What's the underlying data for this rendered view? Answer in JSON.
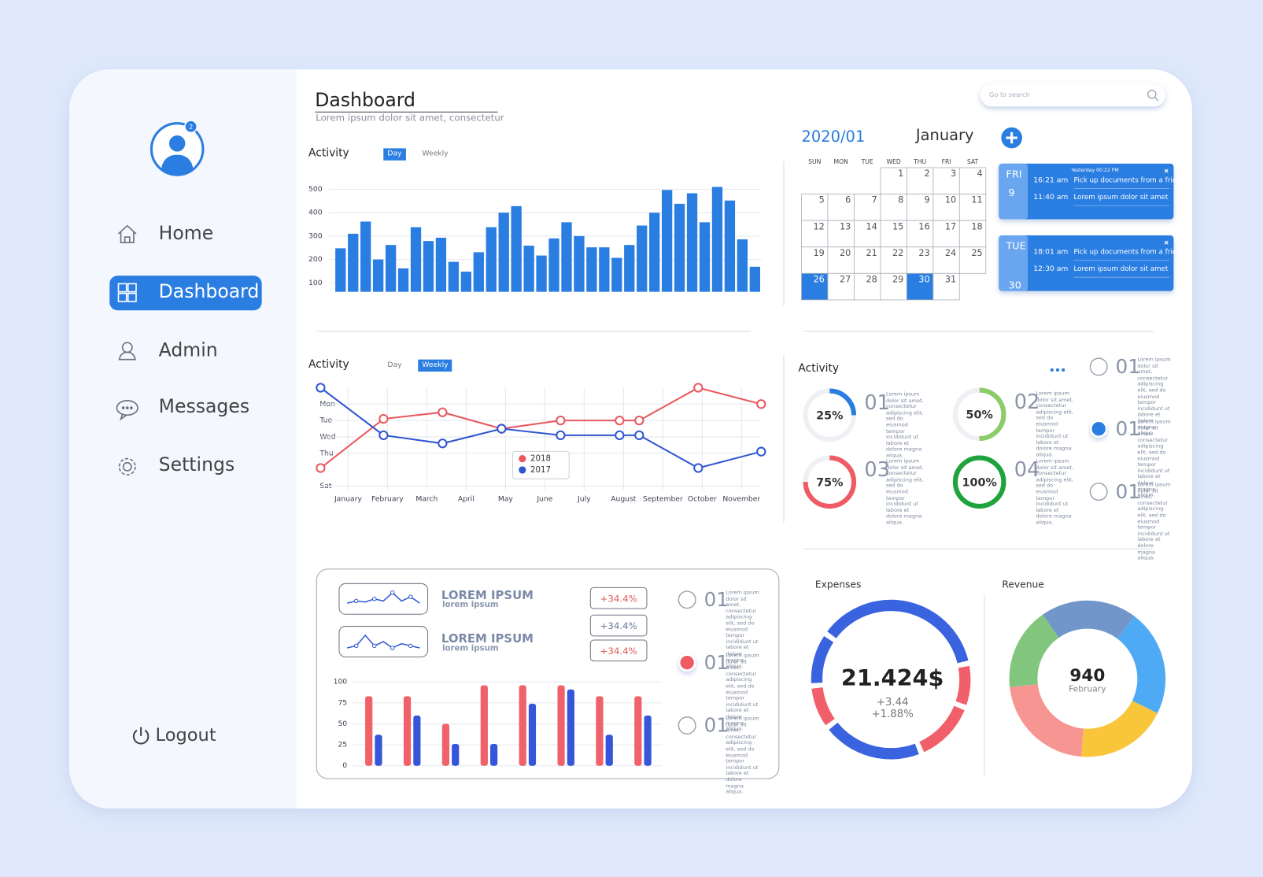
{
  "sidebar": {
    "badge": "2",
    "nav": [
      "Home",
      "Dashboard",
      "Admin",
      "Messages",
      "Settings"
    ],
    "active": 1,
    "logout": "Logout"
  },
  "header": {
    "title": "Dashboard",
    "subtitle": "Lorem ipsum dolor sit amet, consectetur",
    "search": "Go to search"
  },
  "lorem": "Lorem ipsum dolor sit amet, consectetur adipiscing elit, sed do eiusmod tempor incididunt ut labore et dolore magna aliqua.",
  "calendar": {
    "year_month": "2020/01",
    "month": "January",
    "weekdays": [
      "SUN",
      "MON",
      "TUE",
      "WED",
      "THU",
      "FRI",
      "SAT"
    ],
    "weeks": [
      [
        null,
        null,
        null,
        1,
        2,
        3,
        4
      ],
      [
        5,
        6,
        7,
        8,
        9,
        10,
        11
      ],
      [
        12,
        13,
        14,
        15,
        16,
        17,
        18
      ],
      [
        19,
        20,
        21,
        22,
        23,
        24,
        25
      ],
      [
        26,
        27,
        28,
        29,
        30,
        31,
        null
      ]
    ],
    "selected": [
      26,
      30
    ]
  },
  "events": [
    {
      "day": "FRI",
      "date": "9",
      "note": "Yesterday 00:22  PM",
      "items": [
        {
          "time": "16:21 am",
          "text": "Pick up documents from a friend"
        },
        {
          "time": "11:40 am",
          "text": "Lorem ipsum dolor sit amet"
        }
      ]
    },
    {
      "day": "TUE",
      "date": "30",
      "items": [
        {
          "time": "18:01 am",
          "text": "Pick up documents from a friend"
        },
        {
          "time": "12:30 am",
          "text": "Lorem ipsum dolor sit amet"
        }
      ]
    }
  ],
  "progress": {
    "title": "Activity",
    "items": [
      {
        "number": "01",
        "value": 25,
        "label": "25%",
        "color": "#2a7de1"
      },
      {
        "number": "02",
        "value": 50,
        "label": "50%",
        "color": "#8dcc6a"
      },
      {
        "number": "03",
        "value": 75,
        "label": "75%",
        "color": "#ef5b64"
      },
      {
        "number": "04",
        "value": 100,
        "label": "100%",
        "color": "#1fa33c"
      }
    ]
  },
  "radio_lists": [
    {
      "items": [
        "01",
        "01",
        "01"
      ],
      "selected": 1,
      "color": "#2a7de1"
    },
    {
      "items": [
        "01",
        "01",
        "01"
      ],
      "selected": 1,
      "color": "#ef5b64"
    }
  ],
  "summary": {
    "rows": [
      {
        "title": "LOREM IPSUM",
        "subtitle": "lorem ipsum",
        "values": [
          3,
          4,
          3.5,
          5,
          4,
          8,
          4,
          6,
          3
        ],
        "ylim": [
          0,
          10
        ]
      },
      {
        "title": "LOREM IPSUM",
        "subtitle": "lorem ipsum",
        "values": [
          2,
          3,
          8,
          3,
          5,
          2,
          4,
          3,
          2
        ],
        "ylim": [
          0,
          10
        ]
      }
    ],
    "badges": [
      {
        "value": 34.4,
        "label": "+34.4%",
        "color": "#e05a5a"
      },
      {
        "value": 34.4,
        "label": "+34.4%",
        "color": "#6b7a99"
      },
      {
        "value": 34.4,
        "label": "+34.4%",
        "color": "#e05a5a"
      }
    ]
  },
  "chart_data": [
    {
      "type": "bar",
      "title": "Activity",
      "toggle": [
        "Day",
        "Weekly"
      ],
      "toggle_active": 0,
      "categories": [
        null,
        null,
        null,
        null,
        null,
        null,
        null,
        null,
        null,
        null,
        null,
        null,
        null,
        null,
        null,
        null,
        null,
        null,
        null,
        null,
        null,
        null,
        null,
        null,
        null,
        null,
        null,
        null,
        null,
        null,
        null,
        null,
        null,
        null
      ],
      "values": [
        248,
        310,
        362,
        200,
        262,
        162,
        338,
        279,
        293,
        190,
        148,
        231,
        338,
        400,
        428,
        259,
        217,
        290,
        359,
        300,
        252,
        252,
        207,
        262,
        345,
        400,
        497,
        438,
        483,
        359,
        510,
        452,
        286,
        169
      ],
      "color": "#2a7de1",
      "ylim": [
        62,
        520
      ],
      "yticks": [
        100,
        200,
        300,
        400,
        500
      ],
      "grid": true
    },
    {
      "type": "line",
      "title": "Activity",
      "toggle": [
        "Day",
        "Weekly"
      ],
      "toggle_active": 1,
      "x": [
        -0.7,
        0.9,
        2.4,
        3.9,
        5.4,
        6.9,
        7.4,
        8.9,
        10.5
      ],
      "series": [
        {
          "name": "2018",
          "color": "#e8585e",
          "values": [
            4.9,
            1.9,
            1.5,
            2.5,
            2,
            2,
            2,
            0,
            1
          ]
        },
        {
          "name": "2017",
          "color": "#2f56d2",
          "values": [
            0,
            2.9,
            3.4,
            2.5,
            2.9,
            2.9,
            2.9,
            4.9,
            3.9
          ]
        }
      ],
      "xlim": [
        -0.7,
        10.5
      ],
      "xticks": [
        {
          "value": 0,
          "label": "January"
        },
        {
          "value": 1,
          "label": "February"
        },
        {
          "value": 2,
          "label": "March"
        },
        {
          "value": 3,
          "label": "April"
        },
        {
          "value": 4,
          "label": "May"
        },
        {
          "value": 5,
          "label": "June"
        },
        {
          "value": 6,
          "label": "July"
        },
        {
          "value": 7,
          "label": "August"
        },
        {
          "value": 8,
          "label": "September"
        },
        {
          "value": 9,
          "label": "October"
        },
        {
          "value": 10,
          "label": "November"
        }
      ],
      "ylim": [
        0,
        6
      ],
      "y_inverted": true,
      "yticks": [
        {
          "value": 1,
          "label": "Mon"
        },
        {
          "value": 2,
          "label": "Tue"
        },
        {
          "value": 3,
          "label": "Wed"
        },
        {
          "value": 4,
          "label": "Thu"
        },
        {
          "value": 6,
          "label": "Sat"
        }
      ],
      "grid": true,
      "legend": "center"
    },
    {
      "type": "bar",
      "categories": [
        null,
        null,
        null,
        null,
        null,
        null,
        null,
        null
      ],
      "series": [
        {
          "color": "#f0616a",
          "values": [
            83,
            83,
            50,
            96,
            96,
            96,
            83,
            83
          ]
        },
        {
          "color": "#3556d9",
          "values": [
            37,
            60,
            26,
            26,
            74,
            91,
            37,
            60
          ]
        }
      ],
      "ylim": [
        0,
        100
      ],
      "yticks": [
        0,
        25,
        50,
        75,
        100
      ],
      "grid": true
    },
    {
      "type": "donut",
      "title": "Expenses",
      "center": {
        "value": 21.424,
        "label": "21.424$"
      },
      "changes": [
        {
          "value": 3.44,
          "label": "+3.44"
        },
        {
          "value": 1.88,
          "label": "+1.88%"
        }
      ],
      "values": [
        37,
        9,
        13,
        21,
        9,
        11
      ],
      "colors": [
        "#3a63e0",
        "#f1606a",
        "#f1606a",
        "#3a63e0",
        "#f1606a",
        "#3a63e0"
      ]
    },
    {
      "type": "donut",
      "title": "Revenue",
      "center": 940,
      "subtitle": "February",
      "values": [
        20,
        22,
        19,
        22,
        17
      ],
      "colors": [
        "#7196c9",
        "#4eaaf5",
        "#f9c53a",
        "#f79592",
        "#82c67d"
      ]
    }
  ]
}
